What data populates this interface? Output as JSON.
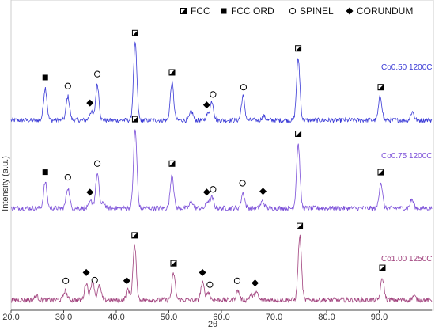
{
  "chart_data": {
    "type": "line",
    "xlabel": "2θ",
    "ylabel": "Intensity (a.u.)",
    "xlim": [
      20.0,
      100.0
    ],
    "x_ticks": [
      "20.0",
      "30.0",
      "40.0",
      "50.0",
      "60.0",
      "70.0",
      "80.0",
      "90.0"
    ],
    "grid": false,
    "legend_position": "top",
    "legend": [
      {
        "label": "FCC",
        "marker": "half-filled-square-icon"
      },
      {
        "label": "FCC ORD",
        "marker": "filled-square-icon"
      },
      {
        "label": "SPINEL",
        "marker": "open-circle-icon"
      },
      {
        "label": "CORUNDUM",
        "marker": "filled-diamond-icon"
      }
    ],
    "series": [
      {
        "name": "Co0.50  1200C",
        "color": "#3a3ad6",
        "peaks": [
          {
            "x": 26.5,
            "h": 0.38
          },
          {
            "x": 30.8,
            "h": 0.28
          },
          {
            "x": 35.2,
            "h": 0.1
          },
          {
            "x": 36.4,
            "h": 0.42
          },
          {
            "x": 43.6,
            "h": 0.9
          },
          {
            "x": 50.6,
            "h": 0.44
          },
          {
            "x": 54.3,
            "h": 0.1
          },
          {
            "x": 57.4,
            "h": 0.07
          },
          {
            "x": 58.2,
            "h": 0.22
          },
          {
            "x": 64.1,
            "h": 0.28
          },
          {
            "x": 68.0,
            "h": 0.05
          },
          {
            "x": 74.6,
            "h": 0.72
          },
          {
            "x": 90.2,
            "h": 0.28
          },
          {
            "x": 96.3,
            "h": 0.1
          }
        ],
        "markers": [
          {
            "x": 26.5,
            "symbol": "filled-square"
          },
          {
            "x": 30.8,
            "symbol": "open-circle"
          },
          {
            "x": 35.0,
            "symbol": "filled-diamond"
          },
          {
            "x": 36.4,
            "symbol": "open-circle"
          },
          {
            "x": 43.6,
            "symbol": "half-filled-square"
          },
          {
            "x": 50.6,
            "symbol": "half-filled-square"
          },
          {
            "x": 57.2,
            "symbol": "filled-diamond"
          },
          {
            "x": 58.4,
            "symbol": "open-circle"
          },
          {
            "x": 64.2,
            "symbol": "open-circle"
          },
          {
            "x": 74.6,
            "symbol": "half-filled-square"
          },
          {
            "x": 90.3,
            "symbol": "half-filled-square"
          }
        ]
      },
      {
        "name": "Co0.75  1200C",
        "color": "#7b4fd8",
        "peaks": [
          {
            "x": 26.5,
            "h": 0.3
          },
          {
            "x": 30.8,
            "h": 0.24
          },
          {
            "x": 35.2,
            "h": 0.08
          },
          {
            "x": 36.4,
            "h": 0.4
          },
          {
            "x": 37.6,
            "h": 0.06
          },
          {
            "x": 43.6,
            "h": 0.92
          },
          {
            "x": 50.6,
            "h": 0.4
          },
          {
            "x": 54.3,
            "h": 0.08
          },
          {
            "x": 57.4,
            "h": 0.08
          },
          {
            "x": 58.2,
            "h": 0.12
          },
          {
            "x": 64.1,
            "h": 0.18
          },
          {
            "x": 67.8,
            "h": 0.08
          },
          {
            "x": 74.6,
            "h": 0.75
          },
          {
            "x": 90.3,
            "h": 0.3
          },
          {
            "x": 96.2,
            "h": 0.1
          }
        ],
        "markers": [
          {
            "x": 26.5,
            "symbol": "filled-square"
          },
          {
            "x": 30.8,
            "symbol": "open-circle"
          },
          {
            "x": 35.0,
            "symbol": "filled-diamond"
          },
          {
            "x": 36.4,
            "symbol": "open-circle"
          },
          {
            "x": 43.6,
            "symbol": "half-filled-square"
          },
          {
            "x": 50.6,
            "symbol": "half-filled-square"
          },
          {
            "x": 57.2,
            "symbol": "filled-diamond"
          },
          {
            "x": 58.4,
            "symbol": "open-circle"
          },
          {
            "x": 64.0,
            "symbol": "open-circle"
          },
          {
            "x": 67.9,
            "symbol": "filled-diamond"
          },
          {
            "x": 74.6,
            "symbol": "half-filled-square"
          },
          {
            "x": 90.3,
            "symbol": "half-filled-square"
          }
        ]
      },
      {
        "name": "Co1.00  1250C",
        "color": "#a0407c",
        "peaks": [
          {
            "x": 24.8,
            "h": 0.05
          },
          {
            "x": 30.3,
            "h": 0.12
          },
          {
            "x": 34.3,
            "h": 0.22
          },
          {
            "x": 35.5,
            "h": 0.26
          },
          {
            "x": 36.8,
            "h": 0.18
          },
          {
            "x": 42.2,
            "h": 0.14
          },
          {
            "x": 43.5,
            "h": 0.7
          },
          {
            "x": 50.9,
            "h": 0.34
          },
          {
            "x": 56.4,
            "h": 0.22
          },
          {
            "x": 57.5,
            "h": 0.1
          },
          {
            "x": 63.1,
            "h": 0.12
          },
          {
            "x": 65.6,
            "h": 0.06
          },
          {
            "x": 66.6,
            "h": 0.1
          },
          {
            "x": 74.9,
            "h": 0.82
          },
          {
            "x": 90.6,
            "h": 0.28
          },
          {
            "x": 96.6,
            "h": 0.05
          }
        ],
        "markers": [
          {
            "x": 30.4,
            "symbol": "open-circle"
          },
          {
            "x": 34.3,
            "symbol": "filled-diamond"
          },
          {
            "x": 35.9,
            "symbol": "open-circle"
          },
          {
            "x": 42.0,
            "symbol": "filled-diamond"
          },
          {
            "x": 43.5,
            "symbol": "half-filled-square"
          },
          {
            "x": 50.9,
            "symbol": "half-filled-square"
          },
          {
            "x": 56.4,
            "symbol": "filled-diamond"
          },
          {
            "x": 57.8,
            "symbol": "open-circle"
          },
          {
            "x": 63.0,
            "symbol": "open-circle"
          },
          {
            "x": 66.4,
            "symbol": "filled-diamond"
          },
          {
            "x": 74.9,
            "symbol": "half-filled-square"
          },
          {
            "x": 90.6,
            "symbol": "half-filled-square"
          }
        ]
      }
    ]
  }
}
